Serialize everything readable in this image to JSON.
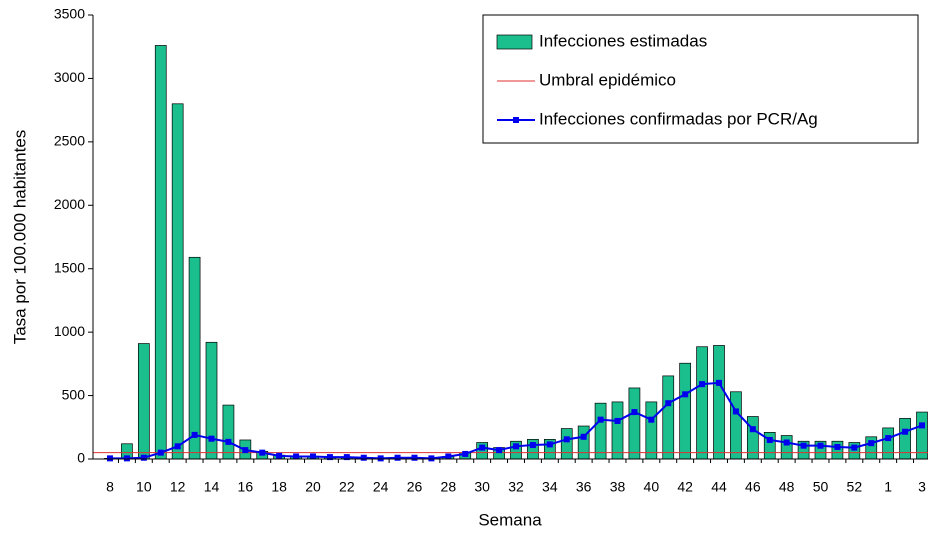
{
  "chart_data": {
    "type": "bar",
    "x_label": "Semana",
    "y_label": "Tasa por 100.000 habitantes",
    "categories": [
      "8",
      null,
      "10",
      null,
      "12",
      null,
      "14",
      null,
      "16",
      null,
      "18",
      null,
      "20",
      null,
      "22",
      null,
      "24",
      null,
      "26",
      null,
      "28",
      null,
      "30",
      null,
      "32",
      null,
      "34",
      null,
      "36",
      null,
      "38",
      null,
      "40",
      null,
      "42",
      null,
      "44",
      null,
      "46",
      null,
      "48",
      null,
      "50",
      null,
      "52",
      null,
      "1",
      null,
      "3"
    ],
    "ylim": [
      0,
      3500
    ],
    "yticks": [
      0,
      500,
      1000,
      1500,
      2000,
      2500,
      3000,
      3500
    ],
    "legend": "upper right",
    "series": [
      {
        "name": "Infecciones estimadas",
        "type": "bar",
        "color": "#1bbf8e",
        "values": [
          5,
          120,
          910,
          3260,
          2800,
          1590,
          920,
          425,
          150,
          60,
          30,
          20,
          15,
          15,
          10,
          10,
          5,
          10,
          10,
          5,
          20,
          50,
          130,
          90,
          140,
          155,
          155,
          240,
          260,
          440,
          450,
          560,
          450,
          655,
          755,
          885,
          895,
          530,
          335,
          210,
          185,
          140,
          140,
          140,
          130,
          175,
          245,
          320,
          370
        ]
      },
      {
        "name": "Umbral epidémico",
        "type": "hline",
        "color": "#e03030",
        "value": 50
      },
      {
        "name": "Infecciones confirmadas por PCR/Ag",
        "type": "line",
        "color": "#0000ee",
        "values": [
          5,
          5,
          10,
          50,
          100,
          190,
          160,
          135,
          70,
          50,
          25,
          20,
          20,
          15,
          15,
          10,
          5,
          10,
          10,
          5,
          20,
          40,
          90,
          70,
          100,
          110,
          115,
          155,
          175,
          310,
          300,
          370,
          310,
          440,
          510,
          590,
          600,
          375,
          235,
          150,
          130,
          105,
          105,
          95,
          90,
          125,
          165,
          215,
          265
        ]
      }
    ]
  }
}
